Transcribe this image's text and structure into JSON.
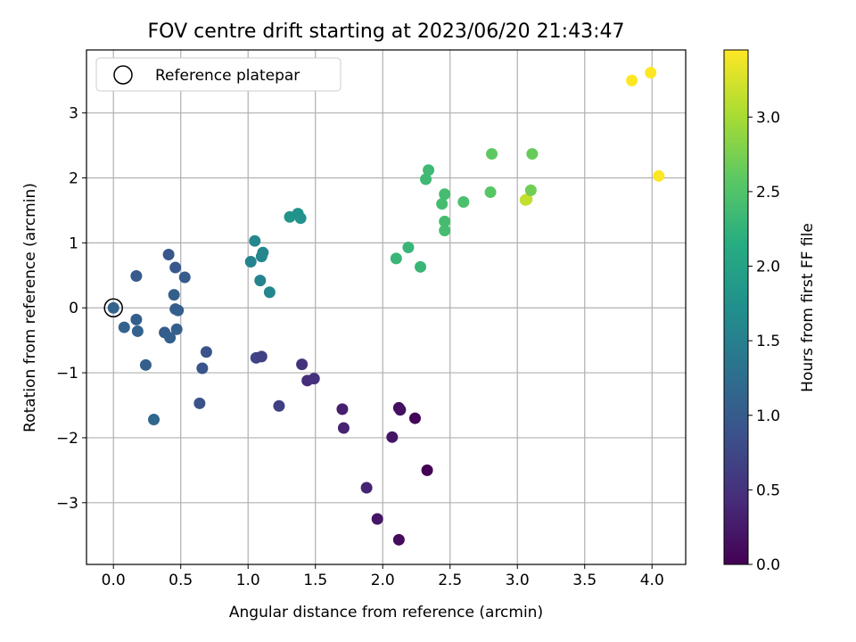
{
  "chart_data": {
    "type": "scatter",
    "title": "FOV centre drift starting at 2023/06/20 21:43:47",
    "xlabel": "Angular distance from reference (arcmin)",
    "ylabel": "Rotation from reference (arcmin)",
    "xlim": [
      -0.2,
      4.25
    ],
    "ylim": [
      -3.95,
      3.97
    ],
    "xticks": [
      0.0,
      0.5,
      1.0,
      1.5,
      2.0,
      2.5,
      3.0,
      3.5,
      4.0
    ],
    "xtick_labels": [
      "0.0",
      "0.5",
      "1.0",
      "1.5",
      "2.0",
      "2.5",
      "3.0",
      "3.5",
      "4.0"
    ],
    "yticks": [
      -3,
      -2,
      -1,
      0,
      1,
      2,
      3
    ],
    "ytick_labels": [
      "−3",
      "−2",
      "−1",
      "0",
      "1",
      "2",
      "3"
    ],
    "grid": true,
    "legend": {
      "position": "top-left",
      "entries": [
        "Reference platepar"
      ]
    },
    "colorbar": {
      "label": "Hours from first FF file",
      "range": [
        0.0,
        3.45
      ],
      "ticks": [
        0.0,
        0.5,
        1.0,
        1.5,
        2.0,
        2.5,
        3.0
      ],
      "tick_labels": [
        "0.0",
        "0.5",
        "1.0",
        "1.5",
        "2.0",
        "2.5",
        "3.0"
      ],
      "colormap": "viridis"
    },
    "reference_point": {
      "x": 0.0,
      "y": 0.0
    },
    "points": [
      {
        "x": 0.0,
        "y": 0.0,
        "hours": 1.1
      },
      {
        "x": 0.08,
        "y": -0.3,
        "hours": 1.1
      },
      {
        "x": 0.17,
        "y": 0.49,
        "hours": 1.0
      },
      {
        "x": 0.17,
        "y": -0.18,
        "hours": 1.05
      },
      {
        "x": 0.18,
        "y": -0.36,
        "hours": 1.1
      },
      {
        "x": 0.24,
        "y": -0.88,
        "hours": 1.05
      },
      {
        "x": 0.3,
        "y": -1.72,
        "hours": 1.15
      },
      {
        "x": 0.38,
        "y": -0.38,
        "hours": 1.0
      },
      {
        "x": 0.41,
        "y": 0.82,
        "hours": 0.95
      },
      {
        "x": 0.42,
        "y": -0.46,
        "hours": 1.05
      },
      {
        "x": 0.45,
        "y": 0.2,
        "hours": 1.05
      },
      {
        "x": 0.46,
        "y": 0.62,
        "hours": 0.95
      },
      {
        "x": 0.46,
        "y": -0.02,
        "hours": 1.05
      },
      {
        "x": 0.47,
        "y": -0.33,
        "hours": 1.05
      },
      {
        "x": 0.48,
        "y": -0.04,
        "hours": 1.05
      },
      {
        "x": 0.53,
        "y": 0.47,
        "hours": 1.0
      },
      {
        "x": 0.64,
        "y": -1.47,
        "hours": 0.9
      },
      {
        "x": 0.66,
        "y": -0.93,
        "hours": 0.9
      },
      {
        "x": 0.69,
        "y": -0.68,
        "hours": 0.9
      },
      {
        "x": 1.02,
        "y": 0.71,
        "hours": 1.55
      },
      {
        "x": 1.05,
        "y": 1.03,
        "hours": 1.6
      },
      {
        "x": 1.06,
        "y": -0.77,
        "hours": 0.7
      },
      {
        "x": 1.09,
        "y": 0.42,
        "hours": 1.55
      },
      {
        "x": 1.1,
        "y": -0.75,
        "hours": 0.65
      },
      {
        "x": 1.1,
        "y": 0.79,
        "hours": 1.6
      },
      {
        "x": 1.11,
        "y": 0.85,
        "hours": 1.6
      },
      {
        "x": 1.16,
        "y": 0.24,
        "hours": 1.6
      },
      {
        "x": 1.23,
        "y": -1.51,
        "hours": 0.65
      },
      {
        "x": 1.31,
        "y": 1.4,
        "hours": 1.8
      },
      {
        "x": 1.37,
        "y": 1.45,
        "hours": 1.75
      },
      {
        "x": 1.39,
        "y": 1.38,
        "hours": 1.75
      },
      {
        "x": 1.4,
        "y": -0.87,
        "hours": 0.5
      },
      {
        "x": 1.44,
        "y": -1.12,
        "hours": 0.45
      },
      {
        "x": 1.49,
        "y": -1.09,
        "hours": 0.5
      },
      {
        "x": 1.7,
        "y": -1.56,
        "hours": 0.3
      },
      {
        "x": 1.71,
        "y": -1.85,
        "hours": 0.35
      },
      {
        "x": 1.88,
        "y": -2.77,
        "hours": 0.35
      },
      {
        "x": 1.96,
        "y": -3.25,
        "hours": 0.2
      },
      {
        "x": 2.07,
        "y": -1.99,
        "hours": 0.2
      },
      {
        "x": 2.1,
        "y": 0.76,
        "hours": 2.3
      },
      {
        "x": 2.12,
        "y": -1.54,
        "hours": 0.1
      },
      {
        "x": 2.12,
        "y": -3.57,
        "hours": 0.1
      },
      {
        "x": 2.13,
        "y": -1.57,
        "hours": 0.15
      },
      {
        "x": 2.19,
        "y": 0.93,
        "hours": 2.3
      },
      {
        "x": 2.24,
        "y": -1.7,
        "hours": 0.05
      },
      {
        "x": 2.28,
        "y": 0.63,
        "hours": 2.3
      },
      {
        "x": 2.32,
        "y": 1.98,
        "hours": 2.35
      },
      {
        "x": 2.33,
        "y": -2.5,
        "hours": 0.0
      },
      {
        "x": 2.34,
        "y": 2.12,
        "hours": 2.35
      },
      {
        "x": 2.44,
        "y": 1.6,
        "hours": 2.4
      },
      {
        "x": 2.46,
        "y": 1.75,
        "hours": 2.4
      },
      {
        "x": 2.46,
        "y": 1.33,
        "hours": 2.4
      },
      {
        "x": 2.46,
        "y": 1.19,
        "hours": 2.4
      },
      {
        "x": 2.6,
        "y": 1.63,
        "hours": 2.45
      },
      {
        "x": 2.8,
        "y": 1.78,
        "hours": 2.55
      },
      {
        "x": 2.81,
        "y": 2.37,
        "hours": 2.6
      },
      {
        "x": 3.06,
        "y": 1.66,
        "hours": 3.15
      },
      {
        "x": 3.07,
        "y": 1.67,
        "hours": 3.15
      },
      {
        "x": 3.1,
        "y": 1.81,
        "hours": 2.7
      },
      {
        "x": 3.11,
        "y": 2.37,
        "hours": 2.65
      },
      {
        "x": 3.85,
        "y": 3.5,
        "hours": 3.45
      },
      {
        "x": 3.99,
        "y": 3.62,
        "hours": 3.45
      },
      {
        "x": 4.05,
        "y": 2.03,
        "hours": 3.45
      }
    ]
  }
}
